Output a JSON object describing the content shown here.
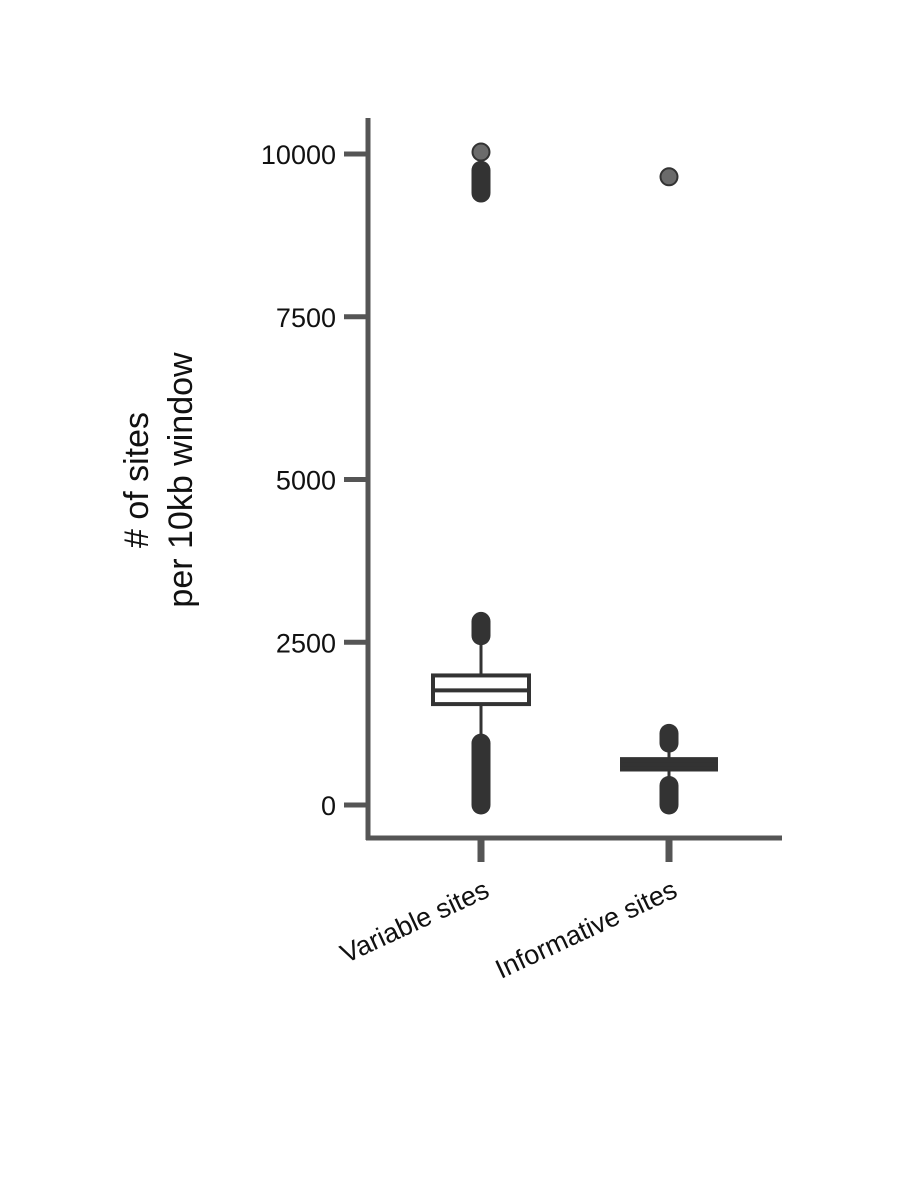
{
  "chart_data": {
    "type": "box",
    "title": "",
    "ylabel_lines": [
      "# of sites",
      "per 10kb window"
    ],
    "xlabel": "",
    "ylim": [
      -500,
      10500
    ],
    "yticks": [
      0,
      2500,
      5000,
      7500,
      10000
    ],
    "ytick_labels": [
      "0",
      "2500",
      "5000",
      "7500",
      "10000"
    ],
    "grid": false,
    "categories": [
      "Variable sites",
      "Informative sites"
    ],
    "boxes": [
      {
        "category": "Variable sites",
        "whisker_low": 1000,
        "q1": 1550,
        "median": 1760,
        "q3": 1990,
        "whisker_high": 2550,
        "outlier_bands": [
          [
            0,
            950
          ],
          [
            2600,
            2820
          ],
          [
            9400,
            9750
          ]
        ],
        "outliers": [
          10030
        ],
        "filled": false
      },
      {
        "category": "Informative sites",
        "whisker_low": 400,
        "q1": 530,
        "median": 620,
        "q3": 720,
        "whisker_high": 900,
        "outlier_bands": [
          [
            0,
            300
          ],
          [
            950,
            1100
          ]
        ],
        "outliers": [
          9650
        ],
        "filled": true
      }
    ],
    "colors": {
      "axis": "#555555",
      "box": "#333333",
      "outlier": "#333333",
      "outlier_isolated": "#6b6b6b"
    }
  }
}
